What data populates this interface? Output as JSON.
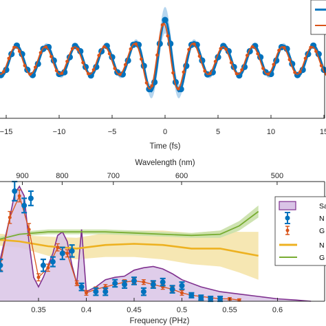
{
  "colors": {
    "measured": "#0072BD",
    "retrieved": "#D95319",
    "spectrum_fill": "#D9C4E6",
    "spectrum_line": "#7E2F8E",
    "phase_n": "#EDB120",
    "phase_n_band": "#F5E3A6",
    "phase_g": "#77AC30",
    "phase_g_band": "#C9E0A8",
    "wave_band": "#9EC8EA"
  },
  "chart_data": [
    {
      "type": "line",
      "xlabel": "Time (fs)",
      "ylabel": "",
      "xlim": [
        -16,
        16
      ],
      "ylim": [
        -1.25,
        1.25
      ],
      "xticks": [
        -15,
        -10,
        -5,
        0,
        5,
        10,
        15
      ],
      "xtick_labels": [
        "−15",
        "−10",
        "−5",
        "0",
        "5",
        "10",
        "15"
      ],
      "grid": false,
      "legend_position": "top-right",
      "legend_labels": [
        "",
        ""
      ],
      "waveform": {
        "period_fs": 2.8,
        "center_fs": 0.0,
        "envelope_width_fs": 1.4,
        "center_amplitude": 0.95,
        "background_amplitude": 0.35,
        "sample_step_fs": 0.5
      },
      "series": [
        {
          "name": "",
          "marker": "circle",
          "color": "#0072BD"
        },
        {
          "name": "",
          "marker": "dot",
          "color": "#D95319"
        }
      ]
    },
    {
      "type": "area",
      "xlabel": "Frequency (PHz)",
      "x2label": "Wavelength (nm)",
      "xlim": [
        0.3,
        0.635
      ],
      "ylim": [
        0,
        1.0
      ],
      "xticks": [
        0.35,
        0.4,
        0.45,
        0.5,
        0.55,
        0.6
      ],
      "xtick_labels": [
        "0.35",
        "0.4",
        "0.45",
        "0.5",
        "0.55",
        "0.6"
      ],
      "x2ticks": [
        900,
        800,
        700,
        600,
        500
      ],
      "x2tick_labels": [
        "900",
        "800",
        "700",
        "600",
        "500"
      ],
      "grid": false,
      "legend_position": "top-right",
      "legend_labels": [
        "Sa",
        "N",
        "G",
        "N",
        "G"
      ],
      "spectrum": {
        "x": [
          0.3,
          0.31,
          0.32,
          0.325,
          0.33,
          0.335,
          0.34,
          0.345,
          0.35,
          0.355,
          0.36,
          0.365,
          0.37,
          0.375,
          0.38,
          0.385,
          0.39,
          0.395,
          0.4,
          0.41,
          0.42,
          0.43,
          0.44,
          0.45,
          0.46,
          0.47,
          0.48,
          0.49,
          0.5,
          0.52,
          0.54,
          0.56,
          0.58,
          0.6,
          0.62,
          0.635
        ],
        "y": [
          0.25,
          0.35,
          0.7,
          0.9,
          0.96,
          0.88,
          0.5,
          0.2,
          0.12,
          0.2,
          0.3,
          0.4,
          0.55,
          0.58,
          0.5,
          0.3,
          0.15,
          0.6,
          0.08,
          0.12,
          0.18,
          0.2,
          0.21,
          0.26,
          0.28,
          0.29,
          0.27,
          0.23,
          0.18,
          0.12,
          0.08,
          0.06,
          0.04,
          0.02,
          0.01,
          0.0
        ]
      },
      "measured_points": {
        "x": [
          0.31,
          0.325,
          0.335,
          0.342,
          0.355,
          0.365,
          0.375,
          0.385,
          0.395,
          0.41,
          0.42,
          0.43,
          0.44,
          0.45,
          0.46,
          0.47,
          0.48,
          0.49,
          0.5,
          0.51,
          0.52,
          0.53,
          0.54
        ],
        "y": [
          0.3,
          0.92,
          0.8,
          0.86,
          0.3,
          0.33,
          0.4,
          0.42,
          0.12,
          0.08,
          0.08,
          0.15,
          0.14,
          0.17,
          0.08,
          0.14,
          0.16,
          0.1,
          0.13,
          0.05,
          0.03,
          0.02,
          0.02
        ],
        "err": [
          0.05,
          0.08,
          0.06,
          0.06,
          0.05,
          0.04,
          0.05,
          0.05,
          0.03,
          0.03,
          0.03,
          0.03,
          0.03,
          0.03,
          0.03,
          0.03,
          0.03,
          0.03,
          0.03,
          0.02,
          0.02,
          0.02,
          0.02
        ]
      },
      "retrieved_points": {
        "x": [
          0.31,
          0.32,
          0.33,
          0.34,
          0.35,
          0.36,
          0.37,
          0.38,
          0.39,
          0.4,
          0.41,
          0.42,
          0.43,
          0.44,
          0.45,
          0.46,
          0.47,
          0.48,
          0.49,
          0.5,
          0.51,
          0.52,
          0.53,
          0.54,
          0.55,
          0.56
        ],
        "y": [
          0.3,
          0.7,
          0.88,
          0.6,
          0.2,
          0.28,
          0.45,
          0.4,
          0.15,
          0.07,
          0.1,
          0.12,
          0.14,
          0.16,
          0.17,
          0.16,
          0.14,
          0.12,
          0.1,
          0.07,
          0.05,
          0.04,
          0.03,
          0.02,
          0.02,
          0.01
        ],
        "err": [
          0.04,
          0.05,
          0.05,
          0.05,
          0.03,
          0.03,
          0.03,
          0.03,
          0.02,
          0.02,
          0.02,
          0.02,
          0.02,
          0.02,
          0.02,
          0.02,
          0.02,
          0.02,
          0.02,
          0.02,
          0.01,
          0.01,
          0.01,
          0.01,
          0.01,
          0.01
        ]
      },
      "phase_n": {
        "x": [
          0.3,
          0.33,
          0.36,
          0.39,
          0.42,
          0.45,
          0.48,
          0.51,
          0.54,
          0.56,
          0.58
        ],
        "y": [
          0.52,
          0.5,
          0.46,
          0.44,
          0.47,
          0.48,
          0.47,
          0.44,
          0.44,
          0.41,
          0.38
        ],
        "band": [
          0.05,
          0.05,
          0.08,
          0.09,
          0.1,
          0.11,
          0.12,
          0.13,
          0.15,
          0.17,
          0.2
        ]
      },
      "phase_g": {
        "x": [
          0.3,
          0.33,
          0.36,
          0.39,
          0.42,
          0.45,
          0.48,
          0.51,
          0.54,
          0.56,
          0.58
        ],
        "y": [
          0.5,
          0.56,
          0.58,
          0.58,
          0.58,
          0.57,
          0.56,
          0.55,
          0.56,
          0.63,
          0.75
        ],
        "band": [
          0.02,
          0.02,
          0.02,
          0.02,
          0.02,
          0.02,
          0.02,
          0.02,
          0.03,
          0.04,
          0.05
        ]
      }
    }
  ]
}
